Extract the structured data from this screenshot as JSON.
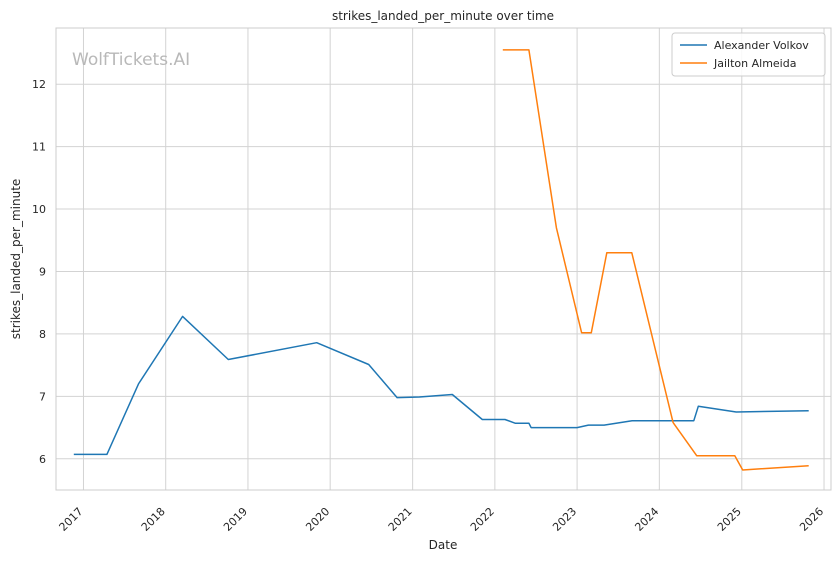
{
  "chart_data": {
    "type": "line",
    "title": "strikes_landed_per_minute over time",
    "xlabel": "Date",
    "ylabel": "strikes_landed_per_minute",
    "watermark": "WolfTickets.AI",
    "xlim": [
      "2016-09-01",
      "2026-02-01"
    ],
    "ylim": [
      5.5,
      12.9
    ],
    "x_ticks": [
      "2017-01-01",
      "2018-01-01",
      "2019-01-01",
      "2020-01-01",
      "2021-01-01",
      "2022-01-01",
      "2023-01-01",
      "2024-01-01",
      "2025-01-01",
      "2026-01-01"
    ],
    "x_tick_labels": [
      "2017",
      "2018",
      "2019",
      "2020",
      "2021",
      "2022",
      "2023",
      "2024",
      "2025",
      "2026"
    ],
    "y_ticks": [
      6,
      7,
      8,
      9,
      10,
      11,
      12
    ],
    "grid": true,
    "legend_position": "top-right",
    "series": [
      {
        "name": "Alexander Volkov",
        "color": "#1f77b4",
        "points": [
          {
            "x": "2016-11-19",
            "y": 6.07
          },
          {
            "x": "2017-04-15",
            "y": 6.07
          },
          {
            "x": "2017-09-02",
            "y": 7.2
          },
          {
            "x": "2018-03-17",
            "y": 8.28
          },
          {
            "x": "2018-10-06",
            "y": 7.59
          },
          {
            "x": "2019-11-02",
            "y": 7.86
          },
          {
            "x": "2020-06-20",
            "y": 7.51
          },
          {
            "x": "2020-10-24",
            "y": 6.98
          },
          {
            "x": "2021-01-31",
            "y": 6.99
          },
          {
            "x": "2021-06-26",
            "y": 7.03
          },
          {
            "x": "2021-11-06",
            "y": 6.63
          },
          {
            "x": "2022-02-15",
            "y": 6.63
          },
          {
            "x": "2022-04-01",
            "y": 6.57
          },
          {
            "x": "2022-06-01",
            "y": 6.57
          },
          {
            "x": "2022-06-11",
            "y": 6.5
          },
          {
            "x": "2023-01-01",
            "y": 6.5
          },
          {
            "x": "2023-02-20",
            "y": 6.54
          },
          {
            "x": "2023-05-01",
            "y": 6.54
          },
          {
            "x": "2023-09-02",
            "y": 6.61
          },
          {
            "x": "2024-06-02",
            "y": 6.61
          },
          {
            "x": "2024-06-22",
            "y": 6.84
          },
          {
            "x": "2024-12-07",
            "y": 6.75
          },
          {
            "x": "2025-10-25",
            "y": 6.77
          }
        ]
      },
      {
        "name": "Jailton Almeida",
        "color": "#ff7f0e",
        "points": [
          {
            "x": "2022-02-05",
            "y": 12.55
          },
          {
            "x": "2022-06-01",
            "y": 12.55
          },
          {
            "x": "2022-10-01",
            "y": 9.7
          },
          {
            "x": "2023-01-21",
            "y": 8.02
          },
          {
            "x": "2023-03-05",
            "y": 8.02
          },
          {
            "x": "2023-05-13",
            "y": 9.3
          },
          {
            "x": "2023-09-01",
            "y": 9.3
          },
          {
            "x": "2024-03-02",
            "y": 6.58
          },
          {
            "x": "2024-06-15",
            "y": 6.05
          },
          {
            "x": "2024-12-01",
            "y": 6.05
          },
          {
            "x": "2025-01-05",
            "y": 5.82
          },
          {
            "x": "2025-10-25",
            "y": 5.89
          }
        ]
      }
    ]
  }
}
